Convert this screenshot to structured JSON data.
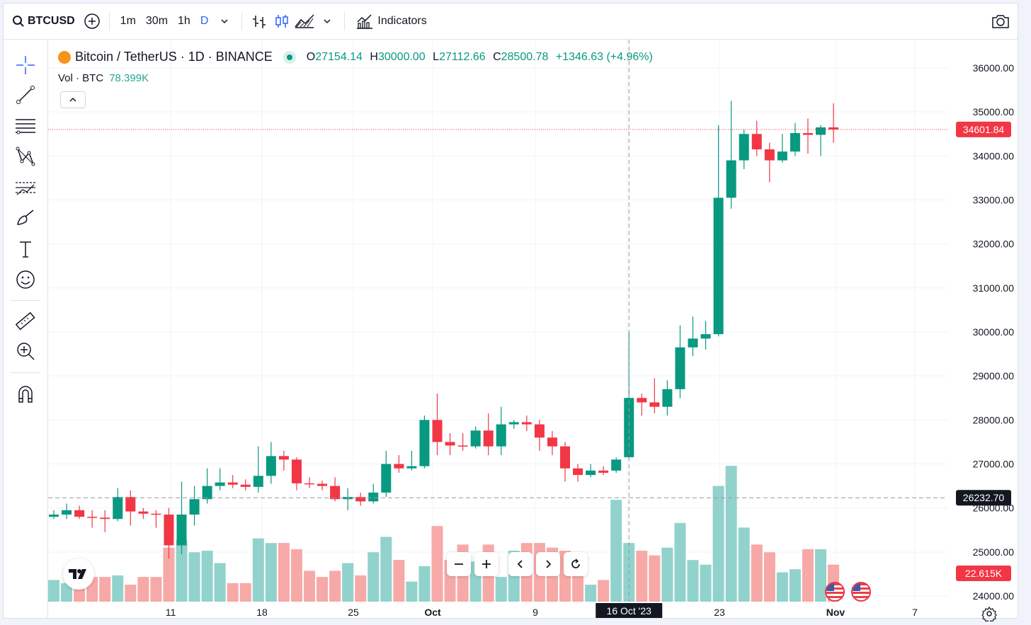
{
  "toolbar": {
    "symbol": "BTCUSD",
    "timeframes": [
      "1m",
      "30m",
      "1h",
      "D"
    ],
    "active_timeframe": "D",
    "indicators_label": "Indicators"
  },
  "legend": {
    "title": "Bitcoin / TetherUS · 1D · BINANCE",
    "o_label": "O",
    "o": "27154.14",
    "h_label": "H",
    "h": "30000.00",
    "l_label": "L",
    "l": "27112.66",
    "c_label": "C",
    "c": "28500.78",
    "change": "+1346.63 (+4.96%)",
    "vol_label": "Vol · BTC",
    "vol_value": "78.399K"
  },
  "colors": {
    "up": "#089981",
    "down": "#f23645",
    "vol_up": "#92d2cc",
    "vol_down": "#f7a9a7",
    "accent": "#2962ff"
  },
  "chart_data": {
    "type": "candlestick",
    "y_ticks": [
      "36000.00",
      "35000.00",
      "34000.00",
      "33000.00",
      "32000.00",
      "31000.00",
      "30000.00",
      "29000.00",
      "28000.00",
      "27000.00",
      "26000.00",
      "25000.00",
      "24000.00"
    ],
    "x_ticks": [
      "11",
      "18",
      "25",
      "Oct",
      "9",
      "16 Oct '23",
      "23",
      "Nov",
      "7"
    ],
    "ylim": [
      23980,
      36500
    ],
    "last_price_label": "34601.84",
    "crosshair_price_label": "26232.70",
    "volume_label": "22.615K",
    "crosshair_date_label": "16 Oct '23",
    "candles": [
      {
        "o": 25800,
        "h": 25950,
        "l": 25750,
        "c": 25850
      },
      {
        "o": 25850,
        "h": 26100,
        "l": 25750,
        "c": 25950
      },
      {
        "o": 25950,
        "h": 26050,
        "l": 25750,
        "c": 25800
      },
      {
        "o": 25800,
        "h": 25950,
        "l": 25550,
        "c": 25780
      },
      {
        "o": 25780,
        "h": 25950,
        "l": 25450,
        "c": 25750
      },
      {
        "o": 25750,
        "h": 26450,
        "l": 25700,
        "c": 26250
      },
      {
        "o": 26250,
        "h": 26400,
        "l": 25600,
        "c": 25920
      },
      {
        "o": 25920,
        "h": 26000,
        "l": 25750,
        "c": 25870
      },
      {
        "o": 25870,
        "h": 25950,
        "l": 25550,
        "c": 25850
      },
      {
        "o": 25850,
        "h": 26000,
        "l": 24850,
        "c": 25150
      },
      {
        "o": 25150,
        "h": 26600,
        "l": 24950,
        "c": 25850
      },
      {
        "o": 25850,
        "h": 26500,
        "l": 25600,
        "c": 26200
      },
      {
        "o": 26200,
        "h": 26900,
        "l": 26100,
        "c": 26500
      },
      {
        "o": 26500,
        "h": 26900,
        "l": 26400,
        "c": 26580
      },
      {
        "o": 26580,
        "h": 26750,
        "l": 26450,
        "c": 26530
      },
      {
        "o": 26530,
        "h": 26650,
        "l": 26400,
        "c": 26480
      },
      {
        "o": 26480,
        "h": 27400,
        "l": 26350,
        "c": 26730
      },
      {
        "o": 26730,
        "h": 27500,
        "l": 26550,
        "c": 27180
      },
      {
        "o": 27180,
        "h": 27300,
        "l": 26850,
        "c": 27100
      },
      {
        "o": 27100,
        "h": 27150,
        "l": 26400,
        "c": 26560
      },
      {
        "o": 26560,
        "h": 26700,
        "l": 26450,
        "c": 26550
      },
      {
        "o": 26550,
        "h": 26620,
        "l": 26400,
        "c": 26500
      },
      {
        "o": 26500,
        "h": 26700,
        "l": 26150,
        "c": 26200
      },
      {
        "o": 26200,
        "h": 26450,
        "l": 25950,
        "c": 26250
      },
      {
        "o": 26250,
        "h": 26350,
        "l": 26050,
        "c": 26150
      },
      {
        "o": 26150,
        "h": 26550,
        "l": 26100,
        "c": 26350
      },
      {
        "o": 26350,
        "h": 27300,
        "l": 26250,
        "c": 27000
      },
      {
        "o": 27000,
        "h": 27200,
        "l": 26800,
        "c": 26900
      },
      {
        "o": 26900,
        "h": 27300,
        "l": 26850,
        "c": 26950
      },
      {
        "o": 26950,
        "h": 28100,
        "l": 26900,
        "c": 28000
      },
      {
        "o": 28000,
        "h": 28600,
        "l": 27200,
        "c": 27500
      },
      {
        "o": 27500,
        "h": 27700,
        "l": 27200,
        "c": 27420
      },
      {
        "o": 27420,
        "h": 27700,
        "l": 27300,
        "c": 27400
      },
      {
        "o": 27400,
        "h": 27850,
        "l": 27350,
        "c": 27760
      },
      {
        "o": 27760,
        "h": 28150,
        "l": 27200,
        "c": 27400
      },
      {
        "o": 27400,
        "h": 28300,
        "l": 27200,
        "c": 27900
      },
      {
        "o": 27900,
        "h": 28000,
        "l": 27800,
        "c": 27950
      },
      {
        "o": 27950,
        "h": 28100,
        "l": 27750,
        "c": 27900
      },
      {
        "o": 27900,
        "h": 28000,
        "l": 27300,
        "c": 27600
      },
      {
        "o": 27600,
        "h": 27750,
        "l": 27200,
        "c": 27400
      },
      {
        "o": 27400,
        "h": 27500,
        "l": 26600,
        "c": 26900
      },
      {
        "o": 26900,
        "h": 27000,
        "l": 26600,
        "c": 26750
      },
      {
        "o": 26750,
        "h": 27000,
        "l": 26700,
        "c": 26850
      },
      {
        "o": 26850,
        "h": 26950,
        "l": 26750,
        "c": 26800
      },
      {
        "o": 26850,
        "h": 27150,
        "l": 26800,
        "c": 27100
      },
      {
        "o": 27154.14,
        "h": 30000,
        "l": 27112.66,
        "c": 28500.78
      },
      {
        "o": 28500,
        "h": 28600,
        "l": 28100,
        "c": 28400
      },
      {
        "o": 28400,
        "h": 28950,
        "l": 28150,
        "c": 28300
      },
      {
        "o": 28300,
        "h": 28900,
        "l": 28100,
        "c": 28700
      },
      {
        "o": 28700,
        "h": 30150,
        "l": 28500,
        "c": 29650
      },
      {
        "o": 29650,
        "h": 30350,
        "l": 29450,
        "c": 29850
      },
      {
        "o": 29850,
        "h": 30250,
        "l": 29600,
        "c": 29950
      },
      {
        "o": 29950,
        "h": 34700,
        "l": 29900,
        "c": 33050
      },
      {
        "o": 33050,
        "h": 35250,
        "l": 32800,
        "c": 33900
      },
      {
        "o": 33900,
        "h": 34600,
        "l": 33700,
        "c": 34500
      },
      {
        "o": 34500,
        "h": 34800,
        "l": 34000,
        "c": 34150
      },
      {
        "o": 34150,
        "h": 34300,
        "l": 33400,
        "c": 33900
      },
      {
        "o": 33900,
        "h": 34500,
        "l": 33850,
        "c": 34100
      },
      {
        "o": 34100,
        "h": 34750,
        "l": 34000,
        "c": 34520
      },
      {
        "o": 34520,
        "h": 34850,
        "l": 34050,
        "c": 34480
      },
      {
        "o": 34480,
        "h": 34700,
        "l": 34000,
        "c": 34650
      },
      {
        "o": 34650,
        "h": 35200,
        "l": 34300,
        "c": 34601.84
      }
    ],
    "volumes": [
      14,
      12,
      12,
      16,
      16,
      17,
      11,
      16,
      16,
      35,
      40,
      32,
      33,
      25,
      12,
      12,
      41,
      38,
      38,
      34,
      20,
      16,
      20,
      25,
      17,
      32,
      42,
      27,
      13,
      23,
      49,
      27,
      37,
      26,
      37,
      16,
      33,
      38,
      38,
      35,
      33,
      23,
      11,
      14,
      66,
      38,
      33,
      30,
      35,
      51,
      27,
      24,
      75,
      88,
      48,
      37,
      32,
      19,
      21,
      34,
      34,
      24
    ]
  }
}
